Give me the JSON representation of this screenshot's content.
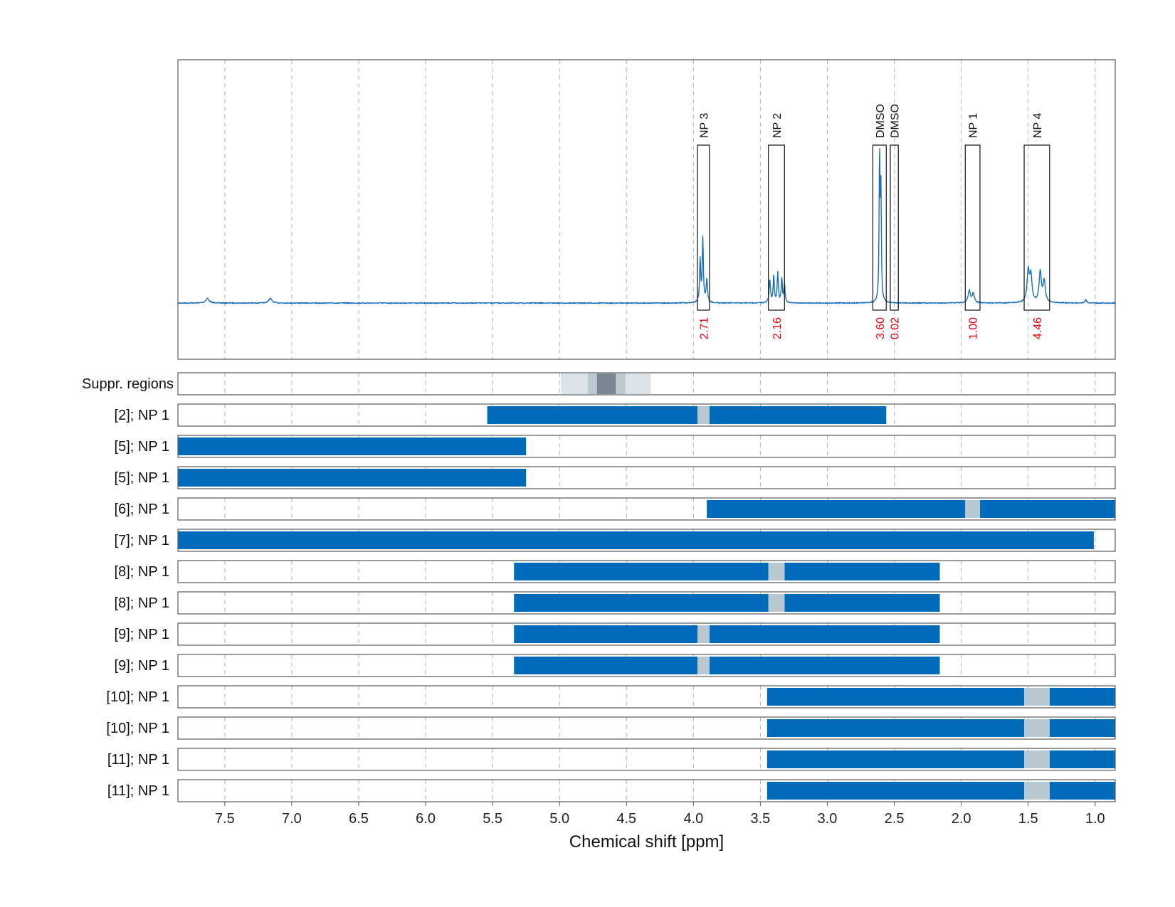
{
  "chart_data": {
    "type": "nmr-spectrum-with-range-bars",
    "xlabel": "Chemical shift [ppm]",
    "xlim": [
      7.85,
      0.85
    ],
    "x_reversed": true,
    "xticks": [
      7.5,
      7.0,
      6.5,
      6.0,
      5.5,
      5.0,
      4.5,
      4.0,
      3.5,
      3.0,
      2.5,
      2.0,
      1.5,
      1.0
    ],
    "xtick_labels": [
      "7.5",
      "7.0",
      "6.5",
      "6.0",
      "5.5",
      "5.0",
      "4.5",
      "4.0",
      "3.5",
      "3.0",
      "2.5",
      "2.0",
      "1.5",
      "1.0"
    ],
    "grid": "vertical dashed",
    "colors": {
      "spectrum": "#1a6fb8",
      "bar": "#006bb8",
      "signal_gap": "#b8c7d0",
      "integral": "#e8000b",
      "supp_light": "#dce3e8",
      "supp_mid": "#bdc9d1",
      "supp_dark": "#7a8792"
    },
    "spectrum_peaks": [
      {
        "ppm": 7.63,
        "height": 0.03,
        "width": 0.015
      },
      {
        "ppm": 7.16,
        "height": 0.03,
        "width": 0.015
      },
      {
        "ppm": 3.93,
        "height": 0.42,
        "width": 0.005
      },
      {
        "ppm": 3.95,
        "height": 0.28,
        "width": 0.005
      },
      {
        "ppm": 3.9,
        "height": 0.15,
        "width": 0.006
      },
      {
        "ppm": 3.43,
        "height": 0.15,
        "width": 0.006
      },
      {
        "ppm": 3.4,
        "height": 0.18,
        "width": 0.005
      },
      {
        "ppm": 3.37,
        "height": 0.2,
        "width": 0.005
      },
      {
        "ppm": 3.34,
        "height": 0.16,
        "width": 0.005
      },
      {
        "ppm": 3.32,
        "height": 0.12,
        "width": 0.005
      },
      {
        "ppm": 2.61,
        "height": 0.98,
        "width": 0.004
      },
      {
        "ppm": 2.6,
        "height": 0.7,
        "width": 0.004
      },
      {
        "ppm": 1.94,
        "height": 0.08,
        "width": 0.01
      },
      {
        "ppm": 1.91,
        "height": 0.06,
        "width": 0.01
      },
      {
        "ppm": 1.5,
        "height": 0.2,
        "width": 0.01
      },
      {
        "ppm": 1.48,
        "height": 0.17,
        "width": 0.01
      },
      {
        "ppm": 1.41,
        "height": 0.2,
        "width": 0.01
      },
      {
        "ppm": 1.38,
        "height": 0.14,
        "width": 0.01
      },
      {
        "ppm": 1.07,
        "height": 0.02,
        "width": 0.008
      }
    ],
    "peak_regions": [
      {
        "label": "NP 3",
        "from": 3.97,
        "to": 3.88,
        "integral": "2.71"
      },
      {
        "label": "NP 2",
        "from": 3.44,
        "to": 3.32,
        "integral": "2.16"
      },
      {
        "label": "DMSO",
        "from": 2.66,
        "to": 2.56,
        "integral": "3.60"
      },
      {
        "label": "DMSO",
        "from": 2.53,
        "to": 2.47,
        "integral": "0.02"
      },
      {
        "label": "NP 1",
        "from": 1.97,
        "to": 1.86,
        "integral": "1.00"
      },
      {
        "label": "NP 4",
        "from": 1.53,
        "to": 1.34,
        "integral": "4.46"
      }
    ],
    "suppression": {
      "label": "Suppr. regions",
      "bands": [
        {
          "from": 4.99,
          "to": 4.32,
          "level": "light"
        },
        {
          "from": 4.79,
          "to": 4.51,
          "level": "mid"
        },
        {
          "from": 4.72,
          "to": 4.58,
          "level": "dark"
        }
      ]
    },
    "rows": [
      {
        "label": "[2]; NP 1",
        "bars": [
          [
            5.54,
            3.97
          ],
          [
            3.88,
            2.56
          ]
        ],
        "gap": [
          3.97,
          3.88
        ]
      },
      {
        "label": "[5]; NP 1",
        "bars": [
          [
            7.85,
            5.25
          ]
        ],
        "gap": null
      },
      {
        "label": "[5]; NP 1",
        "bars": [
          [
            7.85,
            5.25
          ]
        ],
        "gap": null
      },
      {
        "label": "[6]; NP 1",
        "bars": [
          [
            3.9,
            1.97
          ],
          [
            1.86,
            0.85
          ]
        ],
        "gap": [
          1.97,
          1.86
        ]
      },
      {
        "label": "[7]; NP 1",
        "bars": [
          [
            7.85,
            1.01
          ]
        ],
        "gap": null
      },
      {
        "label": "[8]; NP 1",
        "bars": [
          [
            5.34,
            3.44
          ],
          [
            3.32,
            2.16
          ]
        ],
        "gap": [
          3.44,
          3.32
        ]
      },
      {
        "label": "[8]; NP 1",
        "bars": [
          [
            5.34,
            3.44
          ],
          [
            3.32,
            2.16
          ]
        ],
        "gap": [
          3.44,
          3.32
        ]
      },
      {
        "label": "[9]; NP 1",
        "bars": [
          [
            5.34,
            3.97
          ],
          [
            3.88,
            2.16
          ]
        ],
        "gap": [
          3.97,
          3.88
        ]
      },
      {
        "label": "[9]; NP 1",
        "bars": [
          [
            5.34,
            3.97
          ],
          [
            3.88,
            2.16
          ]
        ],
        "gap": [
          3.97,
          3.88
        ]
      },
      {
        "label": "[10]; NP 1",
        "bars": [
          [
            3.45,
            1.53
          ],
          [
            1.34,
            0.85
          ]
        ],
        "gap": [
          1.53,
          1.34
        ]
      },
      {
        "label": "[10]; NP 1",
        "bars": [
          [
            3.45,
            1.53
          ],
          [
            1.34,
            0.85
          ]
        ],
        "gap": [
          1.53,
          1.34
        ]
      },
      {
        "label": "[11]; NP 1",
        "bars": [
          [
            3.45,
            1.53
          ],
          [
            1.34,
            0.85
          ]
        ],
        "gap": [
          1.53,
          1.34
        ]
      },
      {
        "label": "[11]; NP 1",
        "bars": [
          [
            3.45,
            1.53
          ],
          [
            1.34,
            0.85
          ]
        ],
        "gap": [
          1.53,
          1.34
        ]
      }
    ]
  }
}
